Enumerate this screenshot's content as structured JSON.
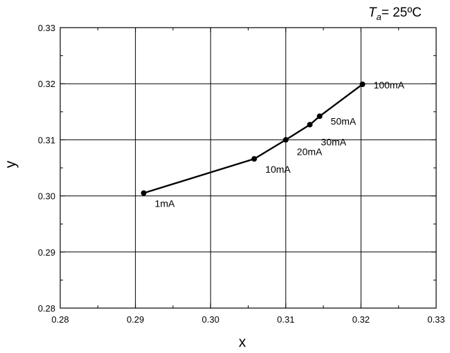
{
  "chart_data": {
    "type": "line",
    "title": "",
    "xlabel": "x",
    "ylabel": "y",
    "xlim": [
      0.28,
      0.33
    ],
    "ylim": [
      0.28,
      0.33
    ],
    "x_ticks": [
      0.28,
      0.29,
      0.3,
      0.31,
      0.32,
      0.33
    ],
    "y_ticks": [
      0.28,
      0.29,
      0.3,
      0.31,
      0.32,
      0.33
    ],
    "x_tick_labels": [
      "0.28",
      "0.29",
      "0.30",
      "0.31",
      "0.32",
      "0.33"
    ],
    "y_tick_labels": [
      "0.28",
      "0.29",
      "0.30",
      "0.31",
      "0.32",
      "0.33"
    ],
    "grid": true,
    "annotation": {
      "var_main": "T",
      "var_sub": "a",
      "value": "= 25ºC"
    },
    "series": [
      {
        "points": [
          {
            "x": 0.2911,
            "y": 0.3005,
            "label": "1mA"
          },
          {
            "x": 0.3058,
            "y": 0.3066,
            "label": "10mA"
          },
          {
            "x": 0.31,
            "y": 0.31,
            "label": "20mA"
          },
          {
            "x": 0.3132,
            "y": 0.3127,
            "label": "30mA"
          },
          {
            "x": 0.3145,
            "y": 0.3142,
            "label": "50mA"
          },
          {
            "x": 0.3202,
            "y": 0.3199,
            "label": "100mA"
          }
        ]
      }
    ]
  }
}
